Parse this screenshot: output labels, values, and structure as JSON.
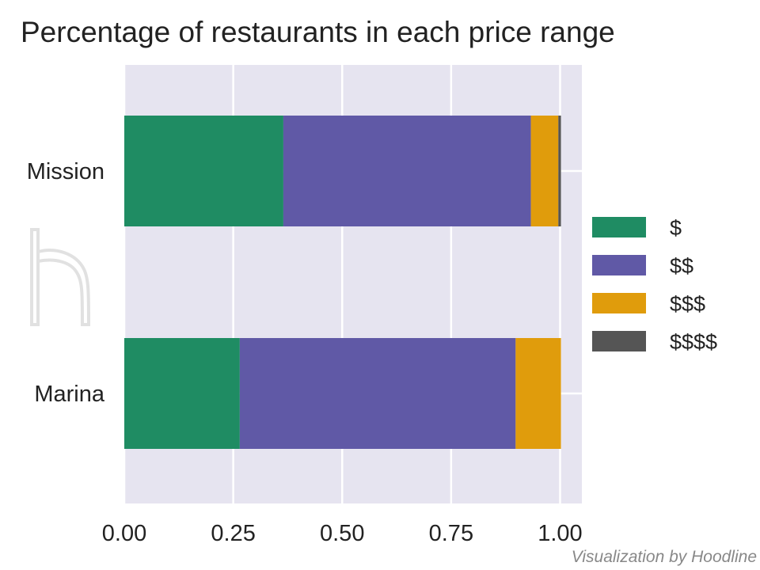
{
  "chart_data": {
    "type": "bar",
    "orientation": "horizontal",
    "stacked": true,
    "title": "Percentage of restaurants in each price range",
    "categories": [
      "Mission",
      "Marina"
    ],
    "series": [
      {
        "name": "$",
        "color": "#1f8c63",
        "values": [
          0.365,
          0.265
        ]
      },
      {
        "name": "$$",
        "color": "#6059a6",
        "values": [
          0.568,
          0.633
        ]
      },
      {
        "name": "$$$",
        "color": "#e09c0c",
        "values": [
          0.063,
          0.104
        ]
      },
      {
        "name": "$$$$",
        "color": "#555555",
        "values": [
          0.006,
          0.0
        ]
      }
    ],
    "xlim": [
      0,
      1.05
    ],
    "xticks": [
      0.0,
      0.25,
      0.5,
      0.75,
      1.0
    ],
    "xtick_labels": [
      "0.00",
      "0.25",
      "0.50",
      "0.75",
      "1.00"
    ],
    "grid": true,
    "background_color": "#e6e4f0",
    "legend_position": "right"
  },
  "watermark": {
    "logo_letter": "h"
  },
  "credit": "Visualization by Hoodline"
}
